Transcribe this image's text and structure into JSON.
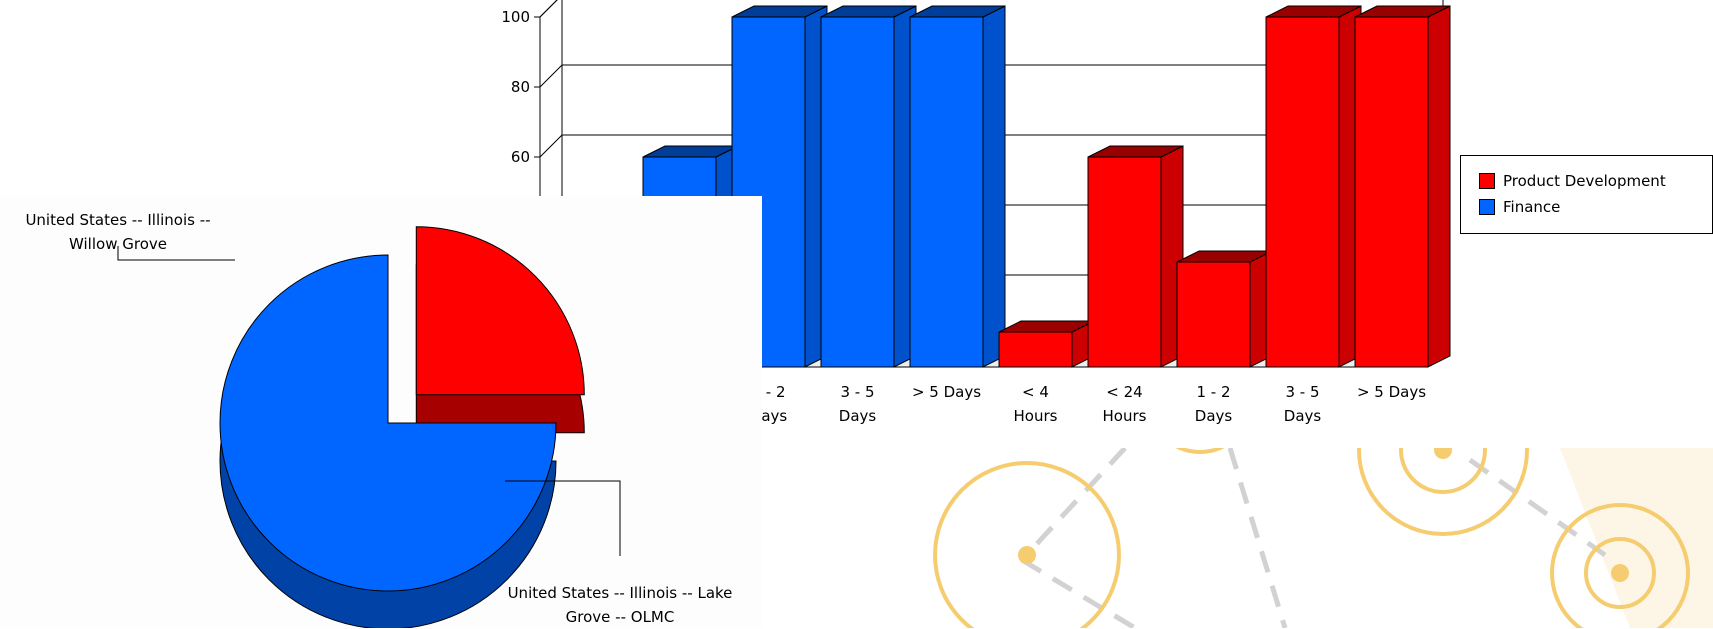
{
  "chart_data": [
    {
      "type": "bar",
      "style": "3d-clustered",
      "categories": [
        "< 4 Hours",
        "< 24 Hours",
        "1 - 2 Days",
        "3 - 5 Days",
        "> 5 Days"
      ],
      "series": [
        {
          "name": "Finance",
          "color": "#0066ff",
          "values": [
            null,
            60,
            100,
            100,
            100
          ]
        },
        {
          "name": "Product Development",
          "color": "#ff0000",
          "values": [
            10,
            60,
            30,
            100,
            100
          ]
        }
      ],
      "ylim": [
        0,
        100
      ],
      "yticks": [
        0,
        20,
        40,
        60,
        80,
        100
      ],
      "grid": true,
      "legend_position": "right",
      "legend": [
        "Product Development",
        "Finance"
      ],
      "x_tick_labels_visible": [
        [
          "3 - 5",
          "Days"
        ],
        [
          "> 5 Days"
        ],
        [
          "< 4",
          "Hours"
        ],
        [
          "< 24",
          "Hours"
        ],
        [
          "1 - 2",
          "Days"
        ],
        [
          "3 - 5",
          "Days"
        ],
        [
          "> 5 Days"
        ]
      ],
      "y_tick_labels_visible": [
        "100",
        "80",
        "60"
      ],
      "xlabel": "",
      "ylabel": "",
      "title": ""
    },
    {
      "type": "pie",
      "style": "3d-exploded",
      "slices": [
        {
          "label": "United States -- Illinois -- Willow Grove",
          "value": 25,
          "color": "#ff0000",
          "exploded": true
        },
        {
          "label": "United States -- Illinois -- Lake Grove -- OLMC",
          "value": 75,
          "color": "#0066ff",
          "exploded": false
        }
      ],
      "label_lines": {
        "willow": [
          "United States -- Illinois --",
          "Willow Grove"
        ],
        "lake": [
          "United States -- Illinois -- Lake",
          "Grove -- OLMC"
        ]
      },
      "title": ""
    }
  ],
  "decor": {
    "circle_color": "#f5cd70",
    "dash_color": "#d2d2d2",
    "corner_tint": "#fdf6e6"
  }
}
